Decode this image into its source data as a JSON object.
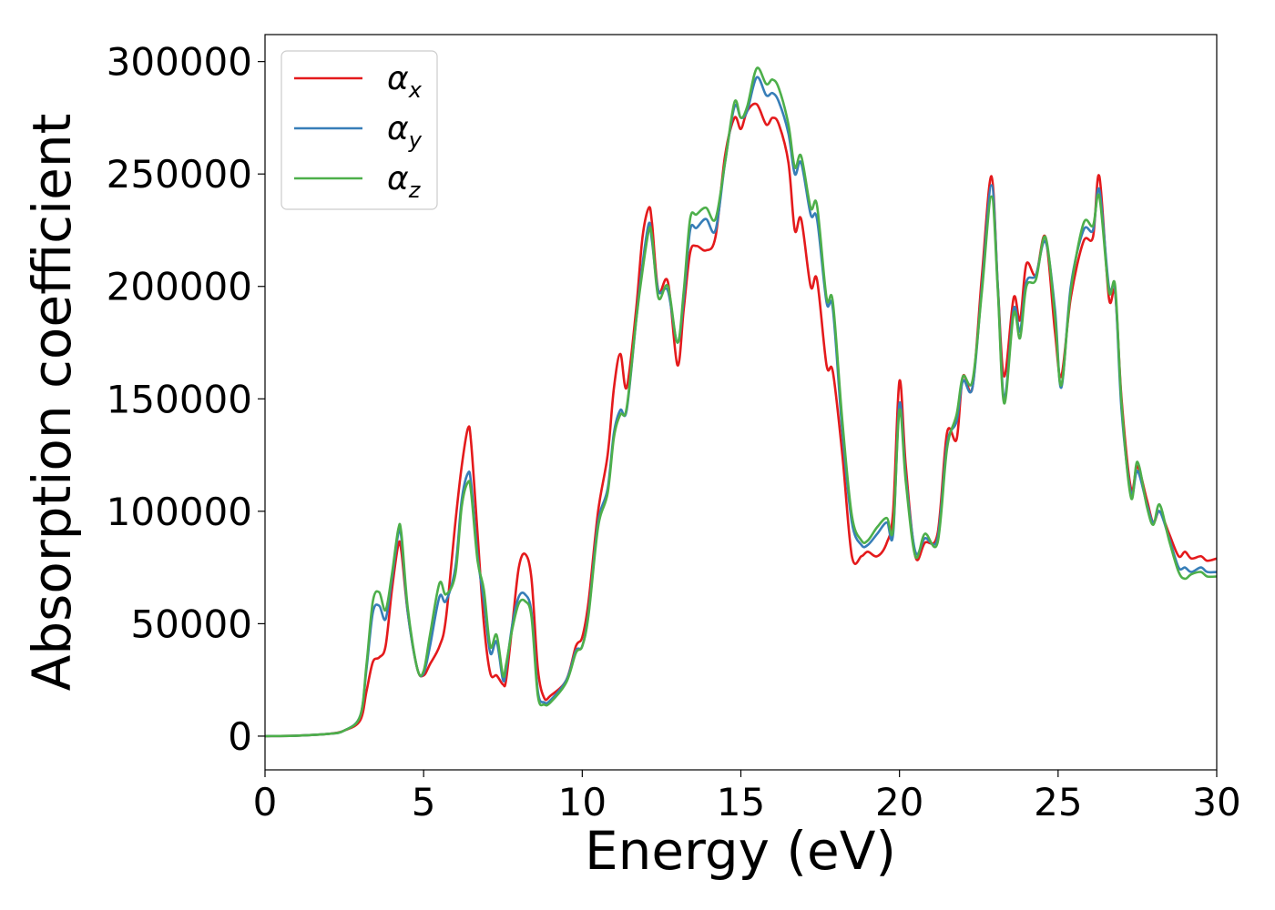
{
  "chart_data": {
    "type": "line",
    "title": "",
    "xlabel": "Energy (eV)",
    "ylabel": "Absorption coefficient",
    "xlim": [
      0,
      30
    ],
    "ylim": [
      -15000,
      312000
    ],
    "xticks": [
      0,
      5,
      10,
      15,
      20,
      25,
      30
    ],
    "yticks": [
      0,
      50000,
      100000,
      150000,
      200000,
      250000,
      300000
    ],
    "grid": false,
    "legend_position": "top-left",
    "series": [
      {
        "name": "α_x",
        "name_base": "α",
        "name_sub": "x",
        "color": "#e41a1c",
        "x": [
          0,
          1,
          2,
          2.5,
          3,
          3.2,
          3.4,
          3.6,
          3.8,
          4.0,
          4.2,
          4.3,
          4.5,
          4.8,
          5.0,
          5.2,
          5.5,
          5.7,
          6.0,
          6.2,
          6.4,
          6.5,
          6.7,
          6.9,
          7.1,
          7.3,
          7.5,
          7.6,
          7.8,
          8.0,
          8.2,
          8.4,
          8.6,
          8.8,
          9.0,
          9.5,
          9.8,
          10.0,
          10.2,
          10.5,
          10.8,
          11.0,
          11.2,
          11.4,
          11.7,
          11.9,
          12.1,
          12.2,
          12.4,
          12.7,
          13.0,
          13.2,
          13.4,
          13.6,
          13.9,
          14.2,
          14.5,
          14.8,
          15.0,
          15.2,
          15.5,
          15.8,
          16.0,
          16.2,
          16.5,
          16.7,
          16.9,
          17.2,
          17.4,
          17.7,
          17.9,
          18.2,
          18.5,
          18.8,
          19.0,
          19.3,
          19.6,
          19.8,
          20.0,
          20.2,
          20.5,
          20.8,
          21.2,
          21.5,
          21.8,
          22.0,
          22.3,
          22.6,
          22.9,
          23.1,
          23.3,
          23.6,
          23.8,
          24.0,
          24.3,
          24.6,
          24.9,
          25.1,
          25.4,
          25.8,
          26.1,
          26.3,
          26.6,
          26.8,
          27.0,
          27.3,
          27.5,
          27.8,
          28.0,
          28.2,
          28.5,
          28.8,
          29.0,
          29.2,
          29.5,
          29.7,
          30.0
        ],
        "y": [
          0,
          200,
          1000,
          2500,
          7000,
          20000,
          33000,
          35000,
          40000,
          65000,
          85000,
          82000,
          55000,
          30000,
          27000,
          32000,
          40000,
          52000,
          95000,
          120000,
          137000,
          130000,
          90000,
          50000,
          28000,
          27000,
          23000,
          25000,
          50000,
          75000,
          81000,
          70000,
          30000,
          17000,
          18000,
          25000,
          40000,
          44000,
          60000,
          100000,
          125000,
          155000,
          170000,
          155000,
          190000,
          222000,
          235000,
          228000,
          198000,
          202000,
          165000,
          190000,
          215000,
          218000,
          216000,
          222000,
          258000,
          275000,
          270000,
          278000,
          281000,
          272000,
          275000,
          272000,
          255000,
          225000,
          230000,
          200000,
          203000,
          165000,
          162000,
          125000,
          80000,
          80000,
          82000,
          80000,
          86000,
          100000,
          158000,
          120000,
          80000,
          86000,
          90000,
          135000,
          132000,
          160000,
          155000,
          205000,
          249000,
          200000,
          160000,
          195000,
          185000,
          210000,
          205000,
          222000,
          180000,
          160000,
          195000,
          220000,
          222000,
          249000,
          195000,
          197000,
          150000,
          110000,
          120000,
          105000,
          95000,
          100000,
          90000,
          80000,
          82000,
          79000,
          80000,
          78000,
          79000
        ]
      },
      {
        "name": "α_y",
        "name_base": "α",
        "name_sub": "y",
        "color": "#377eb8",
        "x": [
          0,
          1,
          2,
          2.5,
          3,
          3.2,
          3.4,
          3.6,
          3.8,
          4.0,
          4.2,
          4.3,
          4.5,
          4.8,
          5.0,
          5.2,
          5.5,
          5.7,
          6.0,
          6.2,
          6.4,
          6.5,
          6.7,
          6.9,
          7.1,
          7.3,
          7.5,
          7.6,
          7.8,
          8.0,
          8.2,
          8.4,
          8.6,
          8.8,
          9.0,
          9.5,
          9.8,
          10.0,
          10.2,
          10.5,
          10.8,
          11.0,
          11.2,
          11.4,
          11.7,
          11.9,
          12.1,
          12.2,
          12.4,
          12.7,
          13.0,
          13.2,
          13.4,
          13.6,
          13.9,
          14.2,
          14.5,
          14.8,
          15.0,
          15.2,
          15.5,
          15.8,
          16.0,
          16.2,
          16.5,
          16.7,
          16.9,
          17.2,
          17.4,
          17.7,
          17.9,
          18.2,
          18.5,
          18.8,
          19.0,
          19.3,
          19.6,
          19.8,
          20.0,
          20.2,
          20.5,
          20.8,
          21.2,
          21.5,
          21.8,
          22.0,
          22.3,
          22.6,
          22.9,
          23.1,
          23.3,
          23.6,
          23.8,
          24.0,
          24.3,
          24.6,
          24.9,
          25.1,
          25.4,
          25.8,
          26.1,
          26.3,
          26.6,
          26.8,
          27.0,
          27.3,
          27.5,
          27.8,
          28.0,
          28.2,
          28.5,
          28.8,
          29.0,
          29.2,
          29.5,
          29.7,
          30.0
        ],
        "y": [
          0,
          200,
          1000,
          2500,
          9000,
          30000,
          55000,
          58000,
          52000,
          70000,
          90000,
          88000,
          55000,
          30000,
          28000,
          40000,
          62000,
          60000,
          75000,
          105000,
          117000,
          112000,
          80000,
          60000,
          37000,
          42000,
          25000,
          30000,
          50000,
          62000,
          63000,
          55000,
          20000,
          15000,
          16000,
          25000,
          38000,
          40000,
          55000,
          95000,
          110000,
          135000,
          145000,
          145000,
          185000,
          210000,
          228000,
          220000,
          198000,
          198000,
          175000,
          195000,
          225000,
          226000,
          230000,
          225000,
          255000,
          280000,
          275000,
          278000,
          293000,
          285000,
          286000,
          282000,
          268000,
          250000,
          255000,
          232000,
          230000,
          193000,
          190000,
          135000,
          95000,
          85000,
          85000,
          90000,
          95000,
          90000,
          148000,
          115000,
          82000,
          88000,
          88000,
          130000,
          140000,
          158000,
          155000,
          200000,
          245000,
          200000,
          150000,
          190000,
          180000,
          202000,
          205000,
          220000,
          190000,
          155000,
          200000,
          225000,
          225000,
          243000,
          200000,
          198000,
          145000,
          108000,
          118000,
          103000,
          95000,
          100000,
          88000,
          75000,
          75000,
          73000,
          75000,
          73000,
          73000
        ]
      },
      {
        "name": "α_z",
        "name_base": "α",
        "name_sub": "z",
        "color": "#4daf4a",
        "x": [
          0,
          1,
          2,
          2.5,
          3,
          3.2,
          3.4,
          3.6,
          3.8,
          4.0,
          4.2,
          4.3,
          4.5,
          4.8,
          5.0,
          5.2,
          5.5,
          5.7,
          6.0,
          6.2,
          6.4,
          6.5,
          6.7,
          6.9,
          7.1,
          7.3,
          7.5,
          7.6,
          7.8,
          8.0,
          8.2,
          8.4,
          8.6,
          8.8,
          9.0,
          9.5,
          9.8,
          10.0,
          10.2,
          10.5,
          10.8,
          11.0,
          11.2,
          11.4,
          11.7,
          11.9,
          12.1,
          12.2,
          12.4,
          12.7,
          13.0,
          13.2,
          13.4,
          13.6,
          13.9,
          14.2,
          14.5,
          14.8,
          15.0,
          15.2,
          15.5,
          15.8,
          16.0,
          16.2,
          16.5,
          16.7,
          16.9,
          17.2,
          17.4,
          17.7,
          17.9,
          18.2,
          18.5,
          18.8,
          19.0,
          19.3,
          19.6,
          19.8,
          20.0,
          20.2,
          20.5,
          20.8,
          21.2,
          21.5,
          21.8,
          22.0,
          22.3,
          22.6,
          22.9,
          23.1,
          23.3,
          23.6,
          23.8,
          24.0,
          24.3,
          24.6,
          24.9,
          25.1,
          25.4,
          25.8,
          26.1,
          26.3,
          26.6,
          26.8,
          27.0,
          27.3,
          27.5,
          27.8,
          28.0,
          28.2,
          28.5,
          28.8,
          29.0,
          29.2,
          29.5,
          29.7,
          30.0
        ],
        "y": [
          0,
          200,
          1000,
          2500,
          9000,
          32000,
          60000,
          64000,
          56000,
          72000,
          92000,
          90000,
          57000,
          30000,
          29000,
          45000,
          68000,
          63000,
          72000,
          102000,
          113000,
          108000,
          78000,
          65000,
          40000,
          45000,
          27000,
          32000,
          48000,
          59000,
          60000,
          53000,
          18000,
          14000,
          15000,
          24000,
          37000,
          40000,
          54000,
          93000,
          108000,
          133000,
          143000,
          146000,
          185000,
          207000,
          225000,
          222000,
          195000,
          200000,
          175000,
          198000,
          230000,
          232000,
          235000,
          230000,
          255000,
          282000,
          275000,
          280000,
          297000,
          290000,
          292000,
          288000,
          272000,
          253000,
          258000,
          235000,
          236000,
          195000,
          193000,
          140000,
          98000,
          87000,
          87000,
          93000,
          97000,
          92000,
          145000,
          113000,
          80000,
          90000,
          86000,
          128000,
          143000,
          160000,
          158000,
          198000,
          240000,
          198000,
          148000,
          188000,
          177000,
          200000,
          203000,
          222000,
          187000,
          156000,
          198000,
          228000,
          227000,
          240000,
          198000,
          200000,
          148000,
          106000,
          122000,
          102000,
          94000,
          103000,
          87000,
          73000,
          70000,
          72000,
          73000,
          71000,
          71000
        ]
      }
    ]
  }
}
